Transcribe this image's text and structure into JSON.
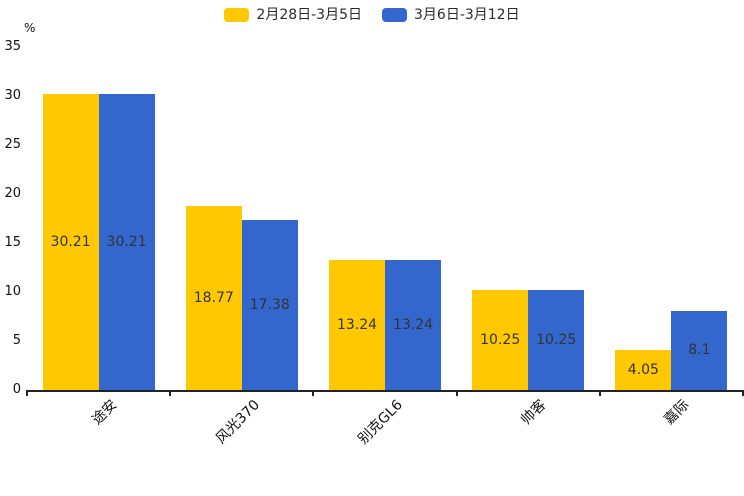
{
  "chart_data": {
    "type": "bar",
    "title": "",
    "unit_label": "%",
    "categories": [
      "途安",
      "风光370",
      "别克GL6",
      "帅客",
      "嘉际"
    ],
    "series": [
      {
        "name": "2月28日-3月5日",
        "color": "#FFC800",
        "values": [
          30.21,
          18.77,
          13.24,
          10.25,
          4.05
        ]
      },
      {
        "name": "3月6日-3月12日",
        "color": "#3467CE",
        "values": [
          30.21,
          17.38,
          13.24,
          10.25,
          8.1
        ]
      }
    ],
    "value_labels": [
      "30.21",
      "30.21",
      "18.77",
      "17.38",
      "13.24",
      "13.24",
      "10.25",
      "10.25",
      "4.05",
      "8.1"
    ],
    "ylim": [
      0,
      35
    ],
    "yticks": [
      0,
      5,
      10,
      15,
      20,
      25,
      30,
      35
    ],
    "grid": false,
    "legend_position": "top",
    "xlabel_rotation": -45,
    "axis_color": "#222222",
    "bar_value_label_color": "#333333",
    "tick_label_color": "#111111",
    "background_color": "#ffffff"
  }
}
